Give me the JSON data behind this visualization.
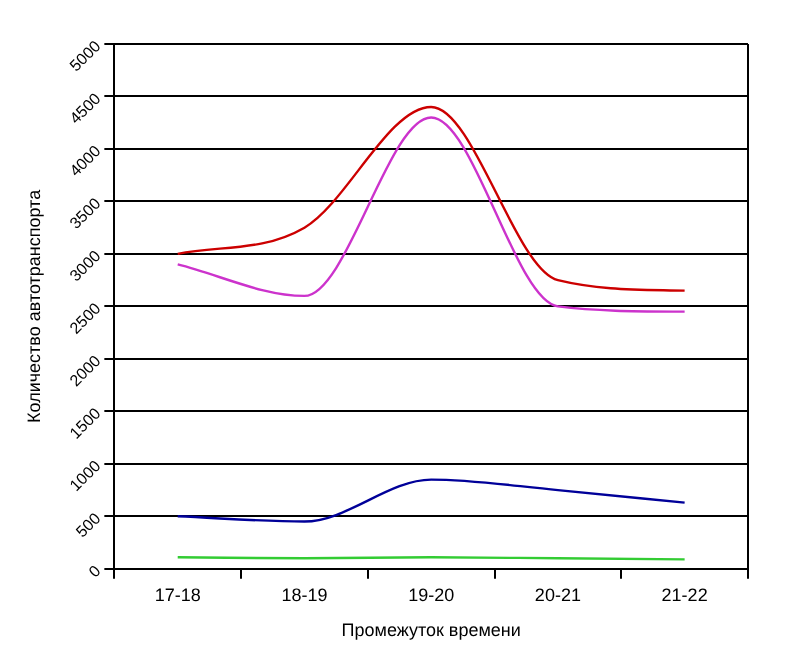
{
  "chart_data": {
    "type": "line",
    "xlabel": "Промежуток времени",
    "ylabel": "Количество автотранспорта",
    "categories": [
      "17-18",
      "18-19",
      "19-20",
      "20-21",
      "21-22"
    ],
    "series": [
      {
        "color": "#cc0000",
        "values": [
          3000,
          3250,
          4400,
          2750,
          2650
        ]
      },
      {
        "color": "#cc33cc",
        "values": [
          2900,
          2600,
          4300,
          2500,
          2450
        ]
      },
      {
        "color": "#000099",
        "values": [
          500,
          450,
          850,
          750,
          630
        ]
      },
      {
        "color": "#33cc33",
        "values": [
          110,
          100,
          110,
          100,
          90
        ]
      }
    ],
    "ylim": [
      0,
      5000
    ],
    "yticks": [
      0,
      500,
      1000,
      1500,
      2000,
      2500,
      3000,
      3500,
      4000,
      4500,
      5000
    ],
    "grid": "y",
    "legend": false,
    "marker": "none",
    "line_style": "solid"
  }
}
